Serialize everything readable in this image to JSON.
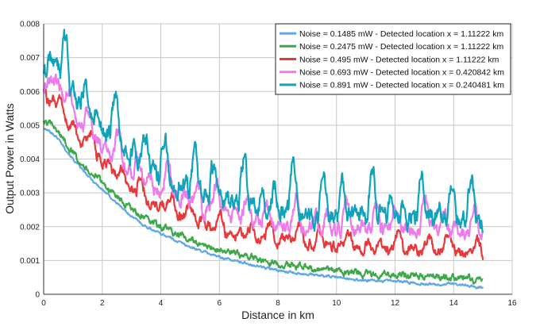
{
  "chart_data": {
    "type": "line",
    "title": "",
    "xlabel": "Distance in km",
    "ylabel": "Output Power in Watts",
    "xlim": [
      0,
      16
    ],
    "ylim": [
      0,
      0.008
    ],
    "xticks": [
      0,
      2,
      4,
      6,
      8,
      10,
      12,
      14,
      16
    ],
    "xtick_labels": [
      "0",
      "2",
      "4",
      "6",
      "8",
      "10",
      "12",
      "14",
      "16"
    ],
    "yticks": [
      0,
      0.001,
      0.002,
      0.003,
      0.004,
      0.005,
      0.006,
      0.007,
      0.008
    ],
    "ytick_labels": [
      "0",
      "0.001",
      "0.002",
      "0.003",
      "0.004",
      "0.005",
      "0.006",
      "0.007",
      "0.008"
    ],
    "grid": true,
    "legend_position": "top-right",
    "series": [
      {
        "name": "Noise = 0.1485 mW - Detected location x = 1.11222 km",
        "color": "#5fa8e8",
        "x": [
          0,
          0.25,
          0.5,
          1,
          1.5,
          2,
          2.5,
          3,
          3.5,
          4,
          5,
          6,
          7,
          8,
          9,
          10,
          11,
          12,
          13,
          14,
          15
        ],
        "y": [
          0.0049,
          0.0048,
          0.0046,
          0.004,
          0.0035,
          0.0031,
          0.0027,
          0.0023,
          0.002,
          0.0018,
          0.0014,
          0.0011,
          0.0009,
          0.0007,
          0.0006,
          0.0005,
          0.0004,
          0.0004,
          0.0003,
          0.0003,
          0.0002
        ]
      },
      {
        "name": "Noise = 0.2475 mW - Detected location x = 1.11222 km",
        "color": "#3ea84a",
        "x": [
          0,
          0.25,
          0.5,
          1,
          1.5,
          2,
          2.5,
          3,
          3.5,
          4,
          5,
          6,
          7,
          8,
          9,
          10,
          11,
          12,
          13,
          14,
          15
        ],
        "y": [
          0.0051,
          0.005,
          0.0048,
          0.0042,
          0.0037,
          0.0033,
          0.0029,
          0.0025,
          0.0022,
          0.002,
          0.0016,
          0.0013,
          0.0011,
          0.0009,
          0.0008,
          0.0007,
          0.0006,
          0.0006,
          0.0005,
          0.0005,
          0.0004
        ]
      },
      {
        "name": "Noise = 0.495 mW - Detected location x = 1.11222 km",
        "color": "#e8383a",
        "x": [
          0,
          0.25,
          0.5,
          1,
          1.5,
          2,
          2.5,
          3,
          3.5,
          4,
          5,
          6,
          7,
          8,
          9,
          10,
          11,
          12,
          13,
          14,
          15
        ],
        "y": [
          0.0056,
          0.0058,
          0.0055,
          0.0048,
          0.0043,
          0.0039,
          0.0035,
          0.0031,
          0.0028,
          0.0026,
          0.0022,
          0.0019,
          0.0017,
          0.0016,
          0.0015,
          0.0014,
          0.0013,
          0.0013,
          0.0013,
          0.0013,
          0.0011
        ]
      },
      {
        "name": "Noise = 0.693 mW - Detected location x = 0.420842 km",
        "color": "#ec7cec",
        "x": [
          0,
          0.25,
          0.5,
          1,
          1.5,
          2,
          2.5,
          3,
          3.5,
          4,
          5,
          6,
          7,
          8,
          9,
          10,
          11,
          12,
          13,
          14,
          15
        ],
        "y": [
          0.006,
          0.0064,
          0.0061,
          0.0053,
          0.0048,
          0.0044,
          0.004,
          0.0036,
          0.0033,
          0.0031,
          0.0027,
          0.0024,
          0.0022,
          0.0021,
          0.002,
          0.0019,
          0.0019,
          0.0019,
          0.0019,
          0.0019,
          0.0017
        ]
      },
      {
        "name": "Noise = 0.891 mW - Detected location x = 0.240481 km",
        "color": "#10a4bc",
        "x": [
          0,
          0.25,
          0.5,
          1,
          1.5,
          2,
          2.5,
          3,
          3.5,
          4,
          5,
          6,
          7,
          8,
          9,
          10,
          11,
          12,
          13,
          14,
          15
        ],
        "y": [
          0.0064,
          0.007,
          0.0067,
          0.0059,
          0.0053,
          0.0049,
          0.0045,
          0.0041,
          0.0038,
          0.0035,
          0.0031,
          0.0028,
          0.0026,
          0.0025,
          0.0024,
          0.0023,
          0.0023,
          0.0023,
          0.0023,
          0.0023,
          0.0021
        ]
      }
    ]
  }
}
